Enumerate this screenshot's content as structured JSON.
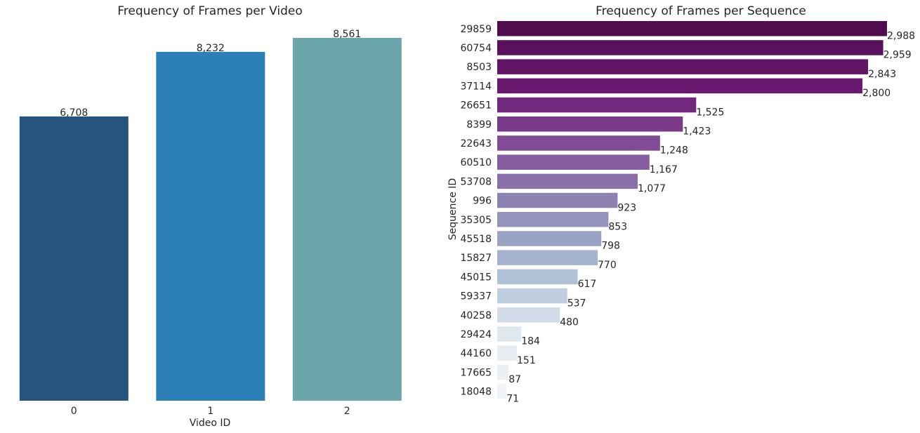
{
  "colors": {
    "video_bars": [
      "#25557e",
      "#2d7fb8",
      "#6ba7aa"
    ],
    "sequence_gradient": [
      "#4f0d4f",
      "#6a1b72",
      "#84519a",
      "#8f8bb6",
      "#a9bdd3",
      "#dfe7ef",
      "#f0f4f8"
    ]
  },
  "chart_data": [
    {
      "type": "bar",
      "orientation": "vertical",
      "title": "Frequency of Frames per Video",
      "xlabel": "Video ID",
      "ylabel": "",
      "categories": [
        "0",
        "1",
        "2"
      ],
      "values": [
        6708,
        8232,
        8561
      ],
      "value_labels": [
        "6,708",
        "8,232",
        "8,561"
      ],
      "ylim": [
        0,
        8561
      ],
      "grid": false,
      "legend": "none"
    },
    {
      "type": "bar",
      "orientation": "horizontal",
      "title": "Frequency of Frames per Sequence",
      "xlabel": "",
      "ylabel": "Sequence ID",
      "categories": [
        "29859",
        "60754",
        "8503",
        "37114",
        "26651",
        "8399",
        "22643",
        "60510",
        "53708",
        "996",
        "35305",
        "45518",
        "15827",
        "45015",
        "59337",
        "40258",
        "29424",
        "44160",
        "17665",
        "18048"
      ],
      "values": [
        2988,
        2959,
        2843,
        2800,
        1525,
        1423,
        1248,
        1167,
        1077,
        923,
        853,
        798,
        770,
        617,
        537,
        480,
        184,
        151,
        87,
        71
      ],
      "value_labels": [
        "2,988",
        "2,959",
        "2,843",
        "2,800",
        "1,525",
        "1,423",
        "1,248",
        "1,167",
        "1,077",
        "923",
        "853",
        "798",
        "770",
        "617",
        "537",
        "480",
        "184",
        "151",
        "87",
        "71"
      ],
      "xlim": [
        0,
        2988
      ],
      "grid": false,
      "legend": "none"
    }
  ]
}
